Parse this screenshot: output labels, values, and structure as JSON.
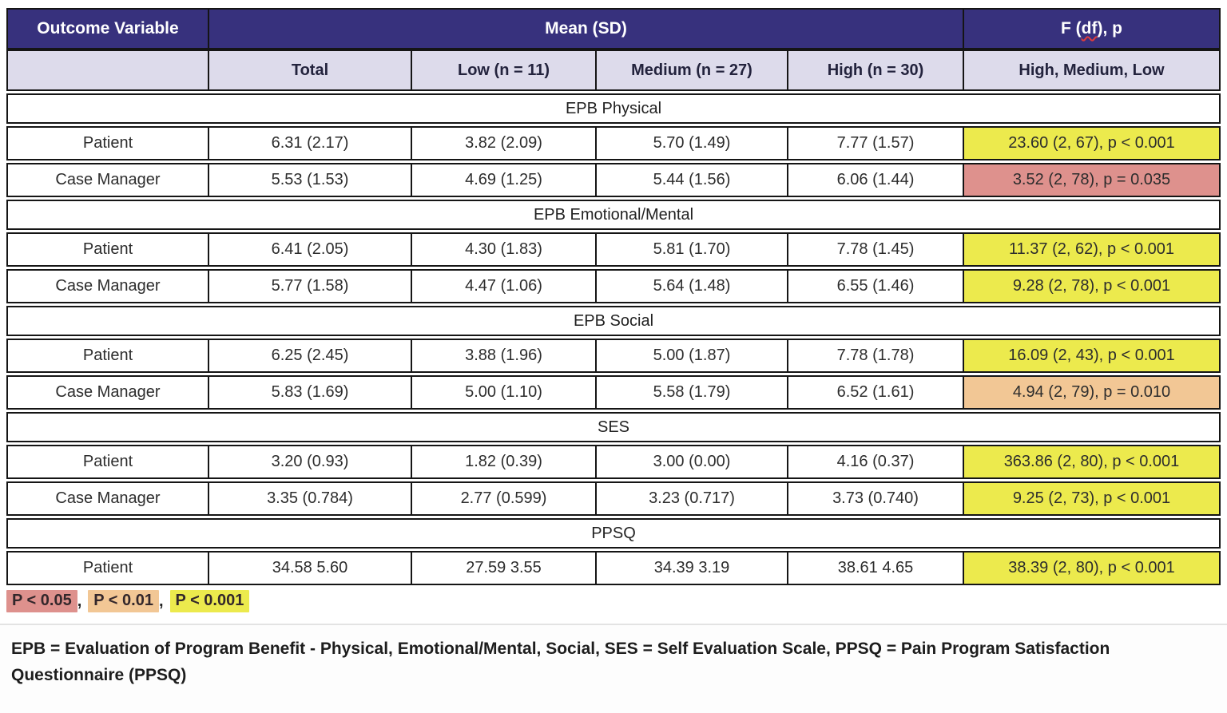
{
  "colors": {
    "header_purple": "#37317d",
    "header_lavender": "#dddbeb",
    "sig_yellow": "#ecea4d",
    "sig_pink": "#de918d",
    "sig_orange": "#f2c795",
    "border_black": "#151515"
  },
  "table": {
    "header_row1": {
      "outcome_variable": "Outcome Variable",
      "mean_sd": "Mean (SD)",
      "f_label": {
        "pre": "F (",
        "squiggle_text": "df",
        "post": "), p"
      }
    },
    "header_row2": {
      "col1": "",
      "total": "Total",
      "low": "Low (n = 11)",
      "medium": "Medium (n = 27)",
      "high": "High (n = 30)",
      "f_sub": "High, Medium, Low"
    },
    "sections": [
      {
        "title": "EPB Physical",
        "rows": [
          {
            "label": "Patient",
            "total": "6.31 (2.17)",
            "low": "3.82 (2.09)",
            "medium": "5.70 (1.49)",
            "high": "7.77 (1.57)",
            "f": "23.60 (2, 67), p < 0.001",
            "sig": "yellow"
          },
          {
            "label": "Case Manager",
            "total": "5.53 (1.53)",
            "low": "4.69 (1.25)",
            "medium": "5.44 (1.56)",
            "high": "6.06 (1.44)",
            "f": "3.52 (2, 78), p = 0.035",
            "sig": "pink"
          }
        ]
      },
      {
        "title": "EPB Emotional/Mental",
        "rows": [
          {
            "label": "Patient",
            "total": "6.41 (2.05)",
            "low": "4.30 (1.83)",
            "medium": "5.81 (1.70)",
            "high": "7.78 (1.45)",
            "f": "11.37 (2, 62), p < 0.001",
            "sig": "yellow"
          },
          {
            "label": "Case Manager",
            "total": "5.77 (1.58)",
            "low": "4.47 (1.06)",
            "medium": "5.64 (1.48)",
            "high": "6.55 (1.46)",
            "f": "9.28 (2, 78), p < 0.001",
            "sig": "yellow"
          }
        ]
      },
      {
        "title": "EPB Social",
        "rows": [
          {
            "label": "Patient",
            "total": "6.25 (2.45)",
            "low": "3.88 (1.96)",
            "medium": "5.00 (1.87)",
            "high": "7.78 (1.78)",
            "f": "16.09 (2, 43), p < 0.001",
            "sig": "yellow"
          },
          {
            "label": "Case Manager",
            "total": "5.83 (1.69)",
            "low": "5.00 (1.10)",
            "medium": "5.58 (1.79)",
            "high": "6.52 (1.61)",
            "f": "4.94 (2, 79), p = 0.010",
            "sig": "orange"
          }
        ]
      },
      {
        "title": "SES",
        "rows": [
          {
            "label": "Patient",
            "total": "3.20 (0.93)",
            "low": "1.82 (0.39)",
            "medium": "3.00 (0.00)",
            "high": "4.16 (0.37)",
            "f": "363.86 (2, 80), p < 0.001",
            "sig": "yellow"
          },
          {
            "label": "Case Manager",
            "total": "3.35 (0.784)",
            "low": "2.77 (0.599)",
            "medium": "3.23 (0.717)",
            "high": "3.73 (0.740)",
            "f": "9.25 (2, 73), p < 0.001",
            "sig": "yellow"
          }
        ]
      },
      {
        "title": "PPSQ",
        "rows": [
          {
            "label": "Patient",
            "total": "34.58 5.60",
            "low": "27.59 3.55",
            "medium": "34.39 3.19",
            "high": "38.61 4.65",
            "f": "38.39 (2, 80), p < 0.001",
            "sig": "yellow"
          }
        ]
      }
    ]
  },
  "legend": {
    "separator": ",",
    "items": [
      {
        "label": "P < 0.05",
        "sig": "pink"
      },
      {
        "label": "P < 0.01",
        "sig": "orange"
      },
      {
        "label": "P < 0.001",
        "sig": "yellow"
      }
    ]
  },
  "footnote": "EPB = Evaluation of Program Benefit - Physical, Emotional/Mental, Social, SES = Self Evaluation Scale, PPSQ = Pain Program Satisfaction Questionnaire (PPSQ)"
}
